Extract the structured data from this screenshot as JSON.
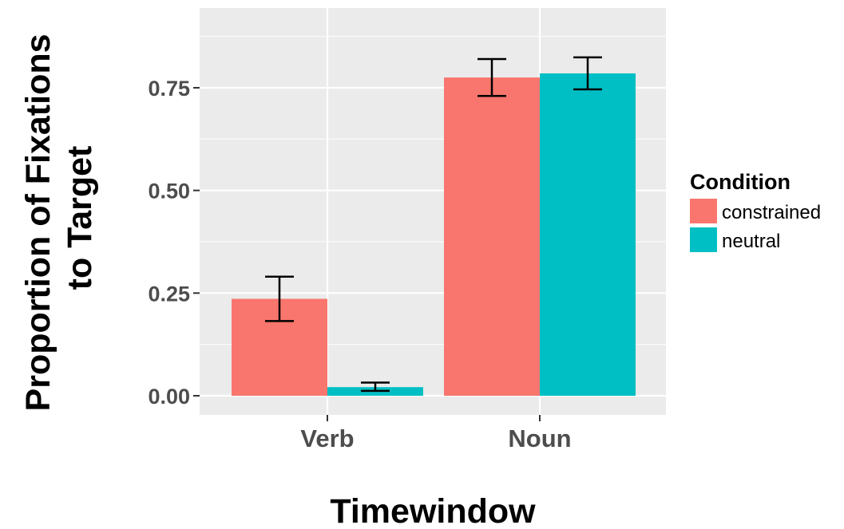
{
  "chart_data": {
    "type": "bar",
    "title": "",
    "xlabel": "Timewindow",
    "ylabel_lines": [
      "Proportion of Fixations",
      "to Target"
    ],
    "categories": [
      "Verb",
      "Noun"
    ],
    "y_ticks": [
      0,
      0.25,
      0.5,
      0.75
    ],
    "y_tick_labels": [
      "0.00",
      "0.25",
      "0.50",
      "0.75"
    ],
    "ylim": [
      -0.046,
      0.945
    ],
    "grid": true,
    "legend": {
      "title": "Condition",
      "position": "right"
    },
    "series": [
      {
        "name": "constrained",
        "color": "#F8766D",
        "values": [
          0.236,
          0.775
        ],
        "error_low": [
          0.182,
          0.73
        ],
        "error_high": [
          0.29,
          0.82
        ]
      },
      {
        "name": "neutral",
        "color": "#00BFC4",
        "values": [
          0.021,
          0.785
        ],
        "error_low": [
          0.012,
          0.746
        ],
        "error_high": [
          0.032,
          0.824
        ]
      }
    ],
    "panel_background": "#EBEBEB",
    "grid_color": "#FFFFFF"
  }
}
